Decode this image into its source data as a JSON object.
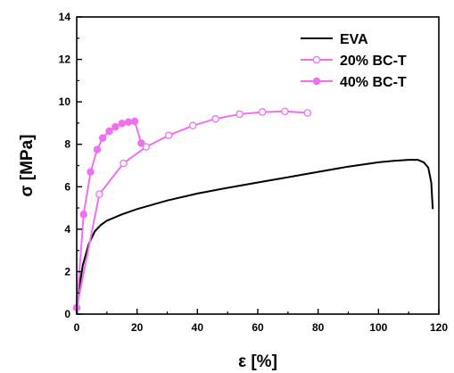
{
  "chart_data": {
    "type": "line",
    "title": "",
    "xlabel": "ε [%]",
    "ylabel": "σ [MPa]",
    "xlim": [
      0,
      120
    ],
    "ylim": [
      0,
      14
    ],
    "xticks": [
      0,
      20,
      40,
      60,
      80,
      100,
      120
    ],
    "yticks": [
      0,
      2,
      4,
      6,
      8,
      10,
      12,
      14
    ],
    "grid": false,
    "legend_position": "top-right",
    "series": [
      {
        "name": "EVA",
        "color": "#000000",
        "marker": "none",
        "x": [
          0,
          1,
          2,
          4,
          6,
          8,
          10,
          15,
          20,
          30,
          40,
          50,
          60,
          70,
          80,
          90,
          100,
          105,
          110,
          113,
          115,
          116.5,
          117.5,
          118
        ],
        "y": [
          0,
          1.4,
          2.3,
          3.3,
          3.9,
          4.2,
          4.4,
          4.7,
          4.95,
          5.35,
          5.68,
          5.95,
          6.2,
          6.45,
          6.7,
          6.95,
          7.15,
          7.22,
          7.27,
          7.27,
          7.15,
          6.9,
          6.2,
          4.95
        ]
      },
      {
        "name": "20% BC-T",
        "color": "#f070f0",
        "marker": "open-circle",
        "x": [
          0,
          7.5,
          15.5,
          23,
          30.5,
          38.5,
          46,
          54,
          61.5,
          69,
          76.5
        ],
        "y": [
          0.3,
          5.65,
          7.1,
          7.88,
          8.42,
          8.88,
          9.2,
          9.42,
          9.52,
          9.55,
          9.48
        ]
      },
      {
        "name": "40% BC-T",
        "color": "#f070f0",
        "marker": "filled-circle",
        "x": [
          0,
          2.3,
          4.6,
          6.8,
          8.6,
          10.8,
          12.8,
          15,
          17.2,
          19.2,
          21.4
        ],
        "y": [
          0.3,
          4.7,
          6.7,
          7.75,
          8.3,
          8.62,
          8.82,
          8.98,
          9.05,
          9.08,
          8.05
        ]
      }
    ]
  }
}
